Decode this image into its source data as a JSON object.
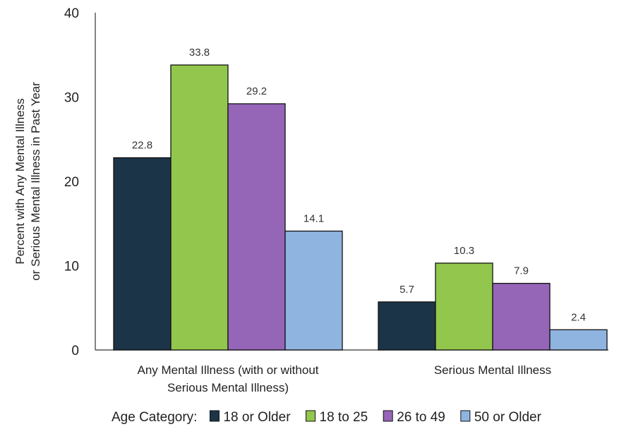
{
  "chart_data": {
    "type": "bar",
    "categories": [
      "Any Mental Illness (with or without Serious Mental Illness)",
      "Serious Mental Illness"
    ],
    "category_lines": [
      [
        "Any Mental Illness (with or without",
        "Serious Mental Illness)"
      ],
      [
        "Serious Mental Illness"
      ]
    ],
    "series": [
      {
        "name": "18 or Older",
        "color": "#1c3447",
        "values": [
          22.8,
          5.7
        ]
      },
      {
        "name": "18 to 25",
        "color": "#92c64d",
        "values": [
          33.8,
          10.3
        ]
      },
      {
        "name": "26 to 49",
        "color": "#9565b8",
        "values": [
          29.2,
          7.9
        ]
      },
      {
        "name": "50 or Older",
        "color": "#8fb4e0",
        "values": [
          14.1,
          2.4
        ]
      }
    ],
    "ylabel": [
      "Percent with Any Mental Illness",
      "or Serious Mental Illness in Past Year"
    ],
    "ylim": [
      0,
      40
    ],
    "yticks": [
      0,
      10,
      20,
      30,
      40
    ],
    "grid": false,
    "legend": {
      "title": "Age Category:",
      "position": "bottom"
    }
  }
}
